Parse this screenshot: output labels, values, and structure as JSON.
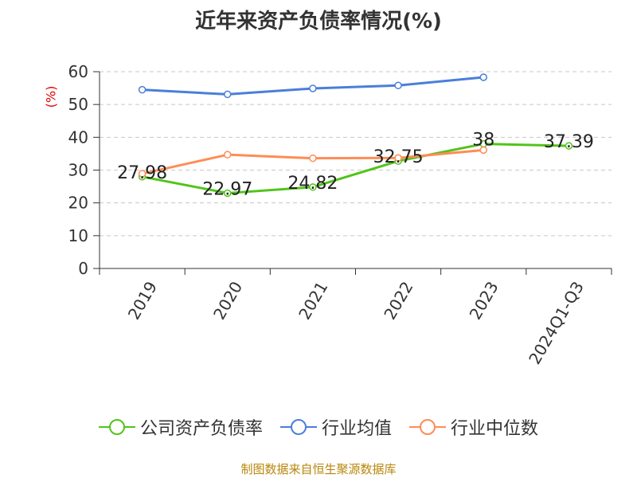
{
  "title": "近年来资产负债率情况(%)",
  "ylabel": "(%)",
  "source": "制图数据来自恒生聚源数据库",
  "chart_data": {
    "type": "line",
    "title": "近年来资产负债率情况(%)",
    "ylabel": "(%)",
    "ylim": [
      0,
      60
    ],
    "yticks": [
      0,
      10,
      20,
      30,
      40,
      50,
      60
    ],
    "grid": true,
    "legend_position": "bottom",
    "categories": [
      "2019",
      "2020",
      "2021",
      "2022",
      "2023",
      "2024Q1-Q3"
    ],
    "series": [
      {
        "name": "公司资产负债率",
        "color": "#52c41a",
        "values": [
          27.98,
          22.97,
          24.82,
          32.75,
          38,
          37.39
        ],
        "show_labels": true
      },
      {
        "name": "行业均值",
        "color": "#4a7fd9",
        "values": [
          54.5,
          53.1,
          54.9,
          55.8,
          58.3,
          null
        ],
        "show_labels": false
      },
      {
        "name": "行业中位数",
        "color": "#ff8c55",
        "values": [
          28.9,
          34.7,
          33.6,
          33.7,
          36.1,
          null
        ],
        "show_labels": false
      }
    ]
  }
}
